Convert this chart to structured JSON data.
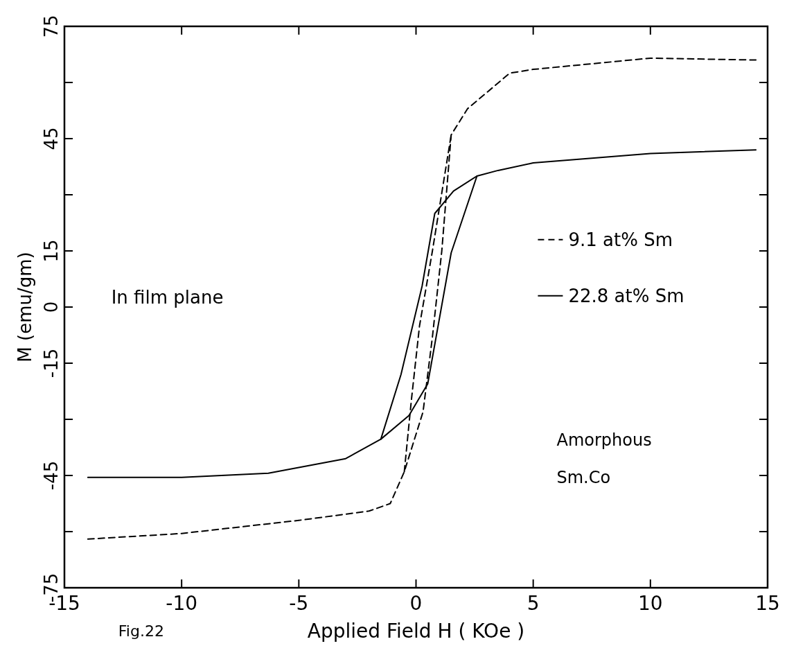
{
  "chart_data": {
    "type": "line",
    "xlabel": "Applied Field    H ( KOe )",
    "ylabel": "M (emu/gm)",
    "xlim": [
      -15,
      15
    ],
    "ylim": [
      -75,
      75
    ],
    "xticks": [
      -15,
      -10,
      -5,
      0,
      5,
      10,
      15
    ],
    "yticks": [
      -75,
      {
        "value": -60,
        "label": null
      },
      -45,
      {
        "value": -30,
        "label": null
      },
      -15,
      0,
      15,
      {
        "value": 30,
        "label": null
      },
      45,
      {
        "value": 60,
        "label": null
      },
      75
    ],
    "legend": "right",
    "grid": false,
    "annotations": [
      "In film plane",
      "Amorphous",
      "Sm.Co",
      "Fig.22"
    ],
    "series": [
      {
        "name": "9.1 at% Sm",
        "color": "#000000",
        "line_style": "dashed",
        "x": [
          -14,
          -10,
          -5,
          -2,
          -1.1,
          -0.5,
          0.3,
          0.7,
          1.1,
          1.5,
          2.2,
          4,
          5,
          10,
          14.5
        ],
        "values": [
          -62,
          -60.5,
          -57,
          -54.5,
          -52.5,
          -44,
          -28,
          -8,
          15,
          46,
          53,
          62.5,
          63.5,
          66.5,
          66
        ]
      },
      {
        "color": "#000000",
        "line_style": "dashed",
        "x": [
          -0.5,
          -0.2,
          0.15,
          0.7,
          1.5
        ],
        "values": [
          -44,
          -25,
          -5,
          15,
          46
        ]
      },
      {
        "name": "22.8 at% Sm",
        "color": "#000000",
        "line_style": "solid",
        "x": [
          -14,
          -10,
          -6.3,
          -3,
          -1.5,
          -0.3,
          0.5,
          1.5,
          2.6,
          3.5,
          5,
          10,
          14.5
        ],
        "values": [
          -45.5,
          -45.5,
          -44.4,
          -40.5,
          -35.3,
          -29,
          -20.5,
          14.5,
          35,
          36.5,
          38.5,
          41,
          42
        ]
      },
      {
        "color": "#000000",
        "line_style": "solid",
        "x": [
          -1.5,
          -0.64,
          0.26,
          0.8,
          1.6,
          2.6
        ],
        "values": [
          -35.3,
          -18,
          5.6,
          25,
          31,
          35
        ]
      }
    ]
  }
}
